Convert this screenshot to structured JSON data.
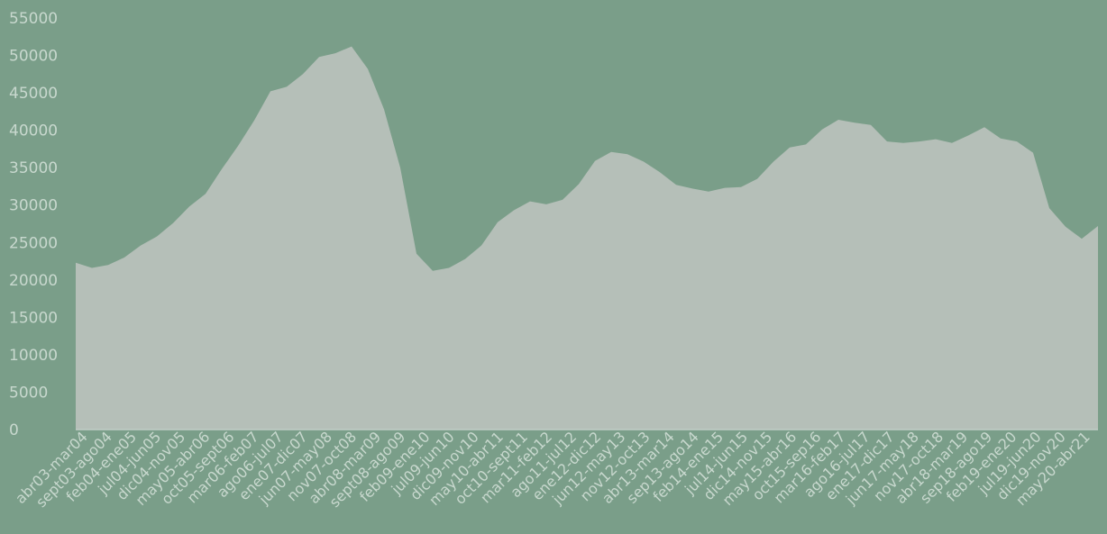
{
  "chart_data": {
    "type": "area",
    "title": "",
    "xlabel": "",
    "ylabel": "",
    "ylim": [
      0,
      55000
    ],
    "yticks": [
      0,
      5000,
      10000,
      15000,
      20000,
      25000,
      30000,
      35000,
      40000,
      45000,
      50000,
      55000
    ],
    "grid": false,
    "legend": "none",
    "x_tick_labels": [
      "abr03-mar04",
      "sept03-ago04",
      "feb04-ene05",
      "jul04-jun05",
      "dic04-nov05",
      "may05-abr06",
      "oct05-sept06",
      "mar06-feb07",
      "ago06-jul07",
      "ene07-dic07",
      "jun07-may08",
      "nov07-oct08",
      "abr08-mar09",
      "sept08-ago09",
      "feb09-ene10",
      "jul09-jun10",
      "dic09-nov10",
      "may10-abr11",
      "oct10-sept11",
      "mar11-feb12",
      "ago11-jul12",
      "ene12-dic12",
      "jun12-may13",
      "nov12-oct13",
      "abr13-mar14",
      "sep13-ago14",
      "feb14-ene15",
      "jul14-jun15",
      "dic14-nov15",
      "may15-abr16",
      "oct15-sep16",
      "mar16-feb17",
      "ago16-jul17",
      "ene17-dic17",
      "jun17-may18",
      "nov17-oct18",
      "abr18-mar19",
      "sep18-ago19",
      "feb19-ene20",
      "jul19-jun20",
      "dic19-nov20",
      "may20-abr21"
    ],
    "series": [
      {
        "values": [
          22300,
          21600,
          22000,
          23000,
          24600,
          25800,
          27600,
          29800,
          31500,
          34800,
          37900,
          41300,
          45200,
          45800,
          47500,
          49800,
          50300,
          51200,
          48200,
          42800,
          35000,
          23500,
          21200,
          21600,
          22800,
          24600,
          27700,
          29300,
          30500,
          30100,
          30700,
          32800,
          35900,
          37100,
          36800,
          35800,
          34400,
          32700,
          32200,
          31800,
          32300,
          32400,
          33500,
          35800,
          37700,
          38100,
          40100,
          41400,
          41000,
          40700,
          38500,
          38300,
          38500,
          38800,
          38300,
          39300,
          40400,
          38900,
          38500,
          37000,
          29600,
          27100,
          25500,
          27200
        ]
      }
    ],
    "colors": {
      "background": "#7a9e89",
      "area_fill": "#b5bfb8",
      "text": "#c8d8ce",
      "baseline": "#c2cec7"
    }
  }
}
